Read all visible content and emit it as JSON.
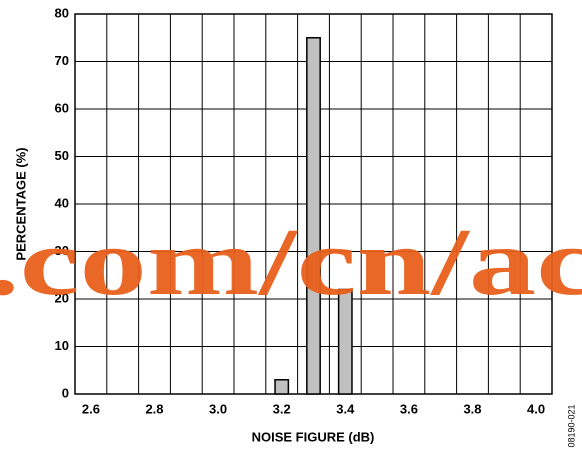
{
  "chart_data": {
    "type": "histogram",
    "xlabel": "NOISE FIGURE (dB)",
    "ylabel": "PERCENTAGE (%)",
    "bins": [
      3.15,
      3.25,
      3.35,
      3.45
    ],
    "counts": [
      3,
      75,
      22
    ],
    "color": "#c0c0c0",
    "xlim": [
      2.55,
      4.05
    ],
    "xticks": [
      {
        "value": 2.6,
        "label": "2.6"
      },
      {
        "value": 2.8,
        "label": "2.8"
      },
      {
        "value": 3.0,
        "label": "3.0"
      },
      {
        "value": 3.2,
        "label": "3.2"
      },
      {
        "value": 3.4,
        "label": "3.4"
      },
      {
        "value": 3.6,
        "label": "3.6"
      },
      {
        "value": 3.8,
        "label": "3.8"
      },
      {
        "value": 4.0,
        "label": "4.0"
      }
    ],
    "xgrid": [
      2.65,
      2.75,
      2.85,
      2.95,
      3.05,
      3.15,
      3.25,
      3.35,
      3.45,
      3.55,
      3.65,
      3.75,
      3.85,
      3.95
    ],
    "ylim": [
      0,
      80
    ],
    "yticks": [
      0,
      10,
      20,
      30,
      40,
      50,
      60,
      70,
      80
    ],
    "grid": true,
    "figure_id": "08190-021",
    "watermark": ".com/cn/ac"
  }
}
